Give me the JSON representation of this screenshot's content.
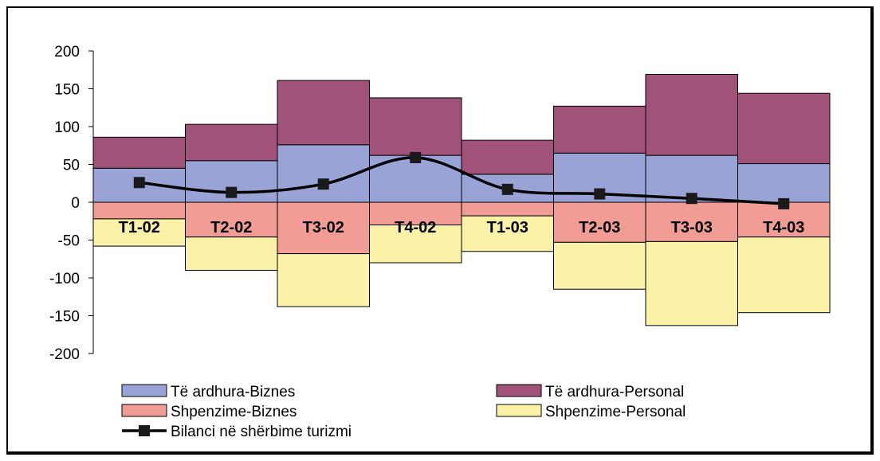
{
  "chart_data": {
    "type": "bar",
    "stacked": true,
    "categories": [
      "T1-02",
      "T2-02",
      "T3-02",
      "T4-02",
      "T1-03",
      "T2-03",
      "T3-03",
      "T4-03"
    ],
    "ylim": [
      -200,
      200
    ],
    "yticks": [
      200,
      150,
      100,
      50,
      0,
      -50,
      -100,
      -150,
      -200
    ],
    "grid": false,
    "legend_position": "bottom",
    "series": [
      {
        "name": "Të ardhura-Biznes",
        "kind": "bar",
        "color": "#99A3D6",
        "values": [
          45,
          55,
          76,
          62,
          37,
          65,
          62,
          51
        ]
      },
      {
        "name": "Të ardhura-Personal",
        "kind": "bar",
        "color": "#A05278",
        "values": [
          41,
          48,
          85,
          76,
          45,
          62,
          107,
          93
        ]
      },
      {
        "name": "Shpenzime-Biznes",
        "kind": "bar",
        "color": "#F19C94",
        "values": [
          -22,
          -46,
          -68,
          -30,
          -18,
          -53,
          -52,
          -46
        ]
      },
      {
        "name": "Shpenzime-Personal",
        "kind": "bar",
        "color": "#FBF2A8",
        "values": [
          -36,
          -44,
          -70,
          -50,
          -47,
          -62,
          -111,
          -100
        ]
      },
      {
        "name": "Bilanci në shërbime turizmi",
        "kind": "line",
        "color": "#000000",
        "values": [
          26,
          13,
          24,
          59,
          17,
          11,
          5,
          -2
        ]
      }
    ]
  }
}
